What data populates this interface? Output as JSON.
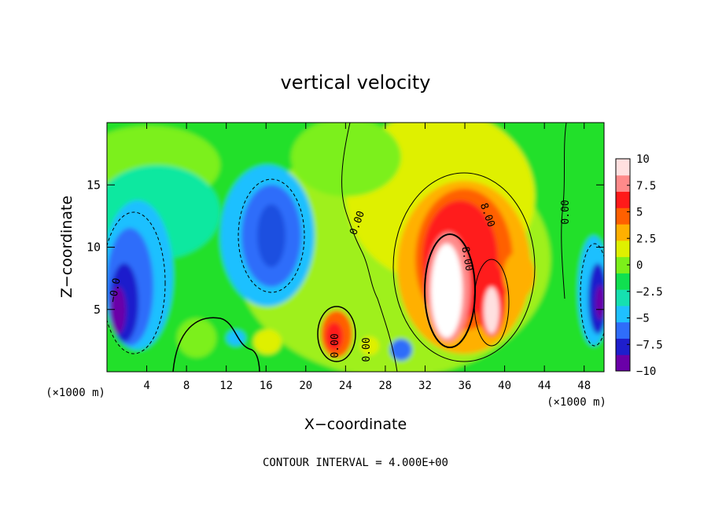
{
  "chart_data": {
    "type": "heatmap",
    "title": "vertical velocity",
    "xlabel": "X−coordinate",
    "ylabel": "Z−coordinate",
    "x_unit_left": "(×1000 m)",
    "x_unit_right": "(×1000 m)",
    "footer": "CONTOUR INTERVAL = 4.000E+00",
    "xlim": [
      0,
      50
    ],
    "ylim": [
      0,
      20
    ],
    "x_ticks": [
      4,
      8,
      12,
      16,
      20,
      24,
      28,
      32,
      36,
      40,
      44,
      48
    ],
    "x_tick_labels": [
      "4",
      "8",
      "12",
      "16",
      "20",
      "24",
      "28",
      "32",
      "36",
      "40",
      "44",
      "48"
    ],
    "y_ticks": [
      5,
      10,
      15
    ],
    "y_tick_labels": [
      "5",
      "10",
      "15"
    ],
    "colorbar": {
      "min": -10,
      "max": 10,
      "ticks": [
        10,
        7.5,
        5,
        2.5,
        0,
        -2.5,
        -5,
        -7.5,
        -10
      ],
      "tick_labels": [
        "10",
        "7.5",
        "5",
        "2.5",
        "0",
        "−2.5",
        "−5",
        "−7.5",
        "−10"
      ],
      "colors": [
        "#6a00a8",
        "#1e1ecc",
        "#2f6dfa",
        "#1fc0ff",
        "#16e0b0",
        "#10e050",
        "#7cf01a",
        "#dff000",
        "#ffb000",
        "#ff6000",
        "#ff1a1a",
        "#ff8a8a",
        "#ffe0e0"
      ]
    },
    "contour_labels": [
      "0.00",
      "0.00",
      "0.00",
      "0.00",
      "8.00",
      "8.00",
      "−0.0"
    ],
    "features": [
      {
        "kind": "updraft",
        "x": 34,
        "z": 7,
        "peak": 10,
        "label": "8.00"
      },
      {
        "kind": "updraft",
        "x": 38.5,
        "z": 5,
        "peak": 10,
        "label": "8.00"
      },
      {
        "kind": "updraft",
        "x": 23,
        "z": 2.5,
        "peak": 8
      },
      {
        "kind": "downdraft",
        "x": 2,
        "z": 6,
        "peak": -10,
        "label": "−0.0"
      },
      {
        "kind": "downdraft",
        "x": 49,
        "z": 6,
        "peak": -10
      },
      {
        "kind": "downdraft",
        "x": 16.5,
        "z": 11,
        "peak": -6
      }
    ]
  }
}
